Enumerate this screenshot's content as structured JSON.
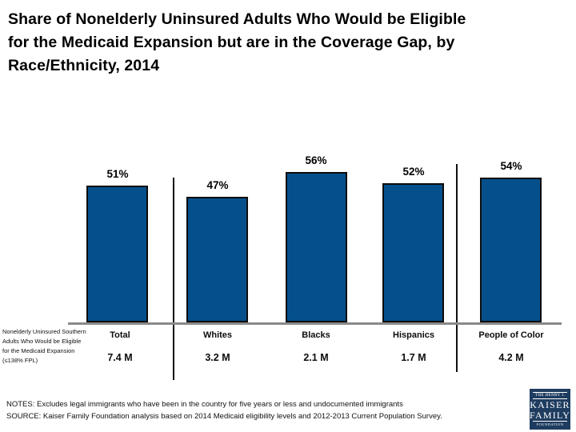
{
  "slide": {
    "title_lines": [
      "Share of Nonelderly Uninsured Adults Who Would be Eligible",
      "for the Medicaid Expansion but are in the Coverage Gap, by",
      "Race/Ethnicity, 2014"
    ]
  },
  "chart_data": {
    "type": "bar",
    "title": "Share of Nonelderly Uninsured Adults Who Would be Eligible for the Medicaid Expansion but are in the Coverage Gap, by Race/Ethnicity, 2014",
    "categories": [
      "Total",
      "Whites",
      "Blacks",
      "Hispanics",
      "People of Color"
    ],
    "values": [
      51,
      47,
      56,
      52,
      54
    ],
    "value_labels": [
      "51%",
      "47%",
      "56%",
      "52%",
      "54%"
    ],
    "count_labels": [
      "7.4 M",
      "3.2 M",
      "2.1 M",
      "1.7 M",
      "4.2 M"
    ],
    "row_label": "Nonelderly Uninsured Southern Adults Who Would be Eligible for the Medicaid Expansion (≤138% FPL)",
    "ylim": [
      0,
      60
    ],
    "grid": false,
    "legend": "none",
    "bar_color": "#05508C",
    "separators_after_categories": [
      "Total",
      "Hispanics"
    ]
  },
  "footer": {
    "notes": "NOTES: Excludes legal immigrants who have been in the country for five years or less and undocumented immigrants",
    "source": "SOURCE: Kaiser Family Foundation analysis based on 2014 Medicaid eligibility levels and 2012-2013 Current Population Survey."
  },
  "logo": {
    "line1": "THE HENRY J.",
    "line2": "KAISER",
    "line3": "FAMILY",
    "line4": "FOUNDATION",
    "bg_color": "#1E3C5F"
  }
}
